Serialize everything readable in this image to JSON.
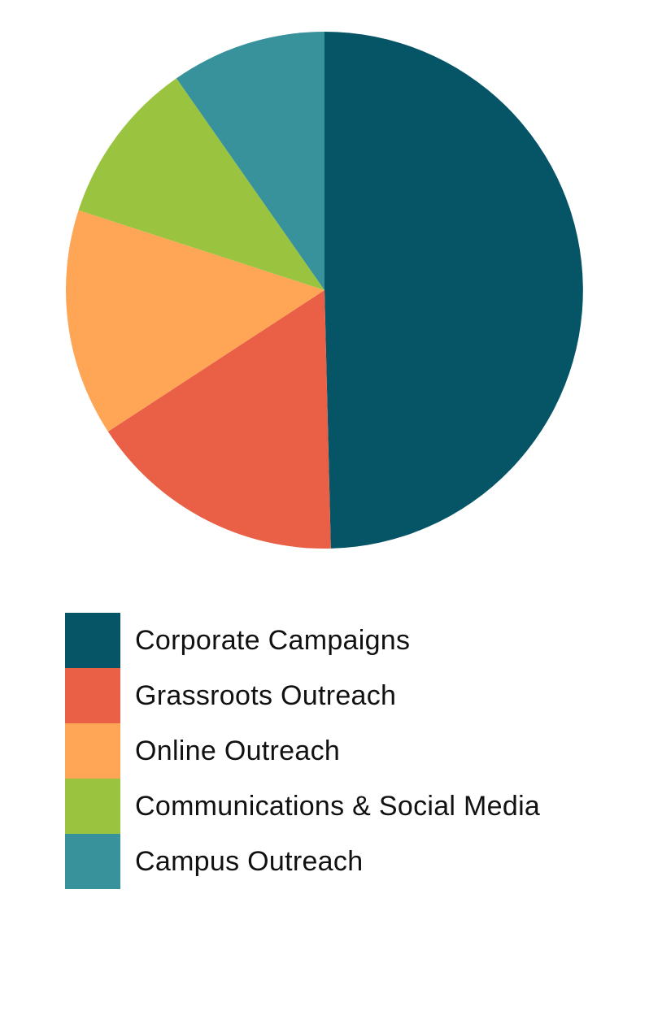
{
  "chart_data": {
    "type": "pie",
    "title": "",
    "legend_position": "bottom",
    "slices": [
      {
        "label": "Corporate Campaigns",
        "value": 50.6,
        "color": "#065567"
      },
      {
        "label": "Grassroots Outreach",
        "value": 16.5,
        "color": "#E96047"
      },
      {
        "label": "Online Outreach",
        "value": 14.5,
        "color": "#FFA556"
      },
      {
        "label": "Communications & Social Media",
        "value": 10.5,
        "color": "#9AC43F"
      },
      {
        "label": "Campus Outreach",
        "value": 9.9,
        "color": "#38929C"
      }
    ]
  }
}
